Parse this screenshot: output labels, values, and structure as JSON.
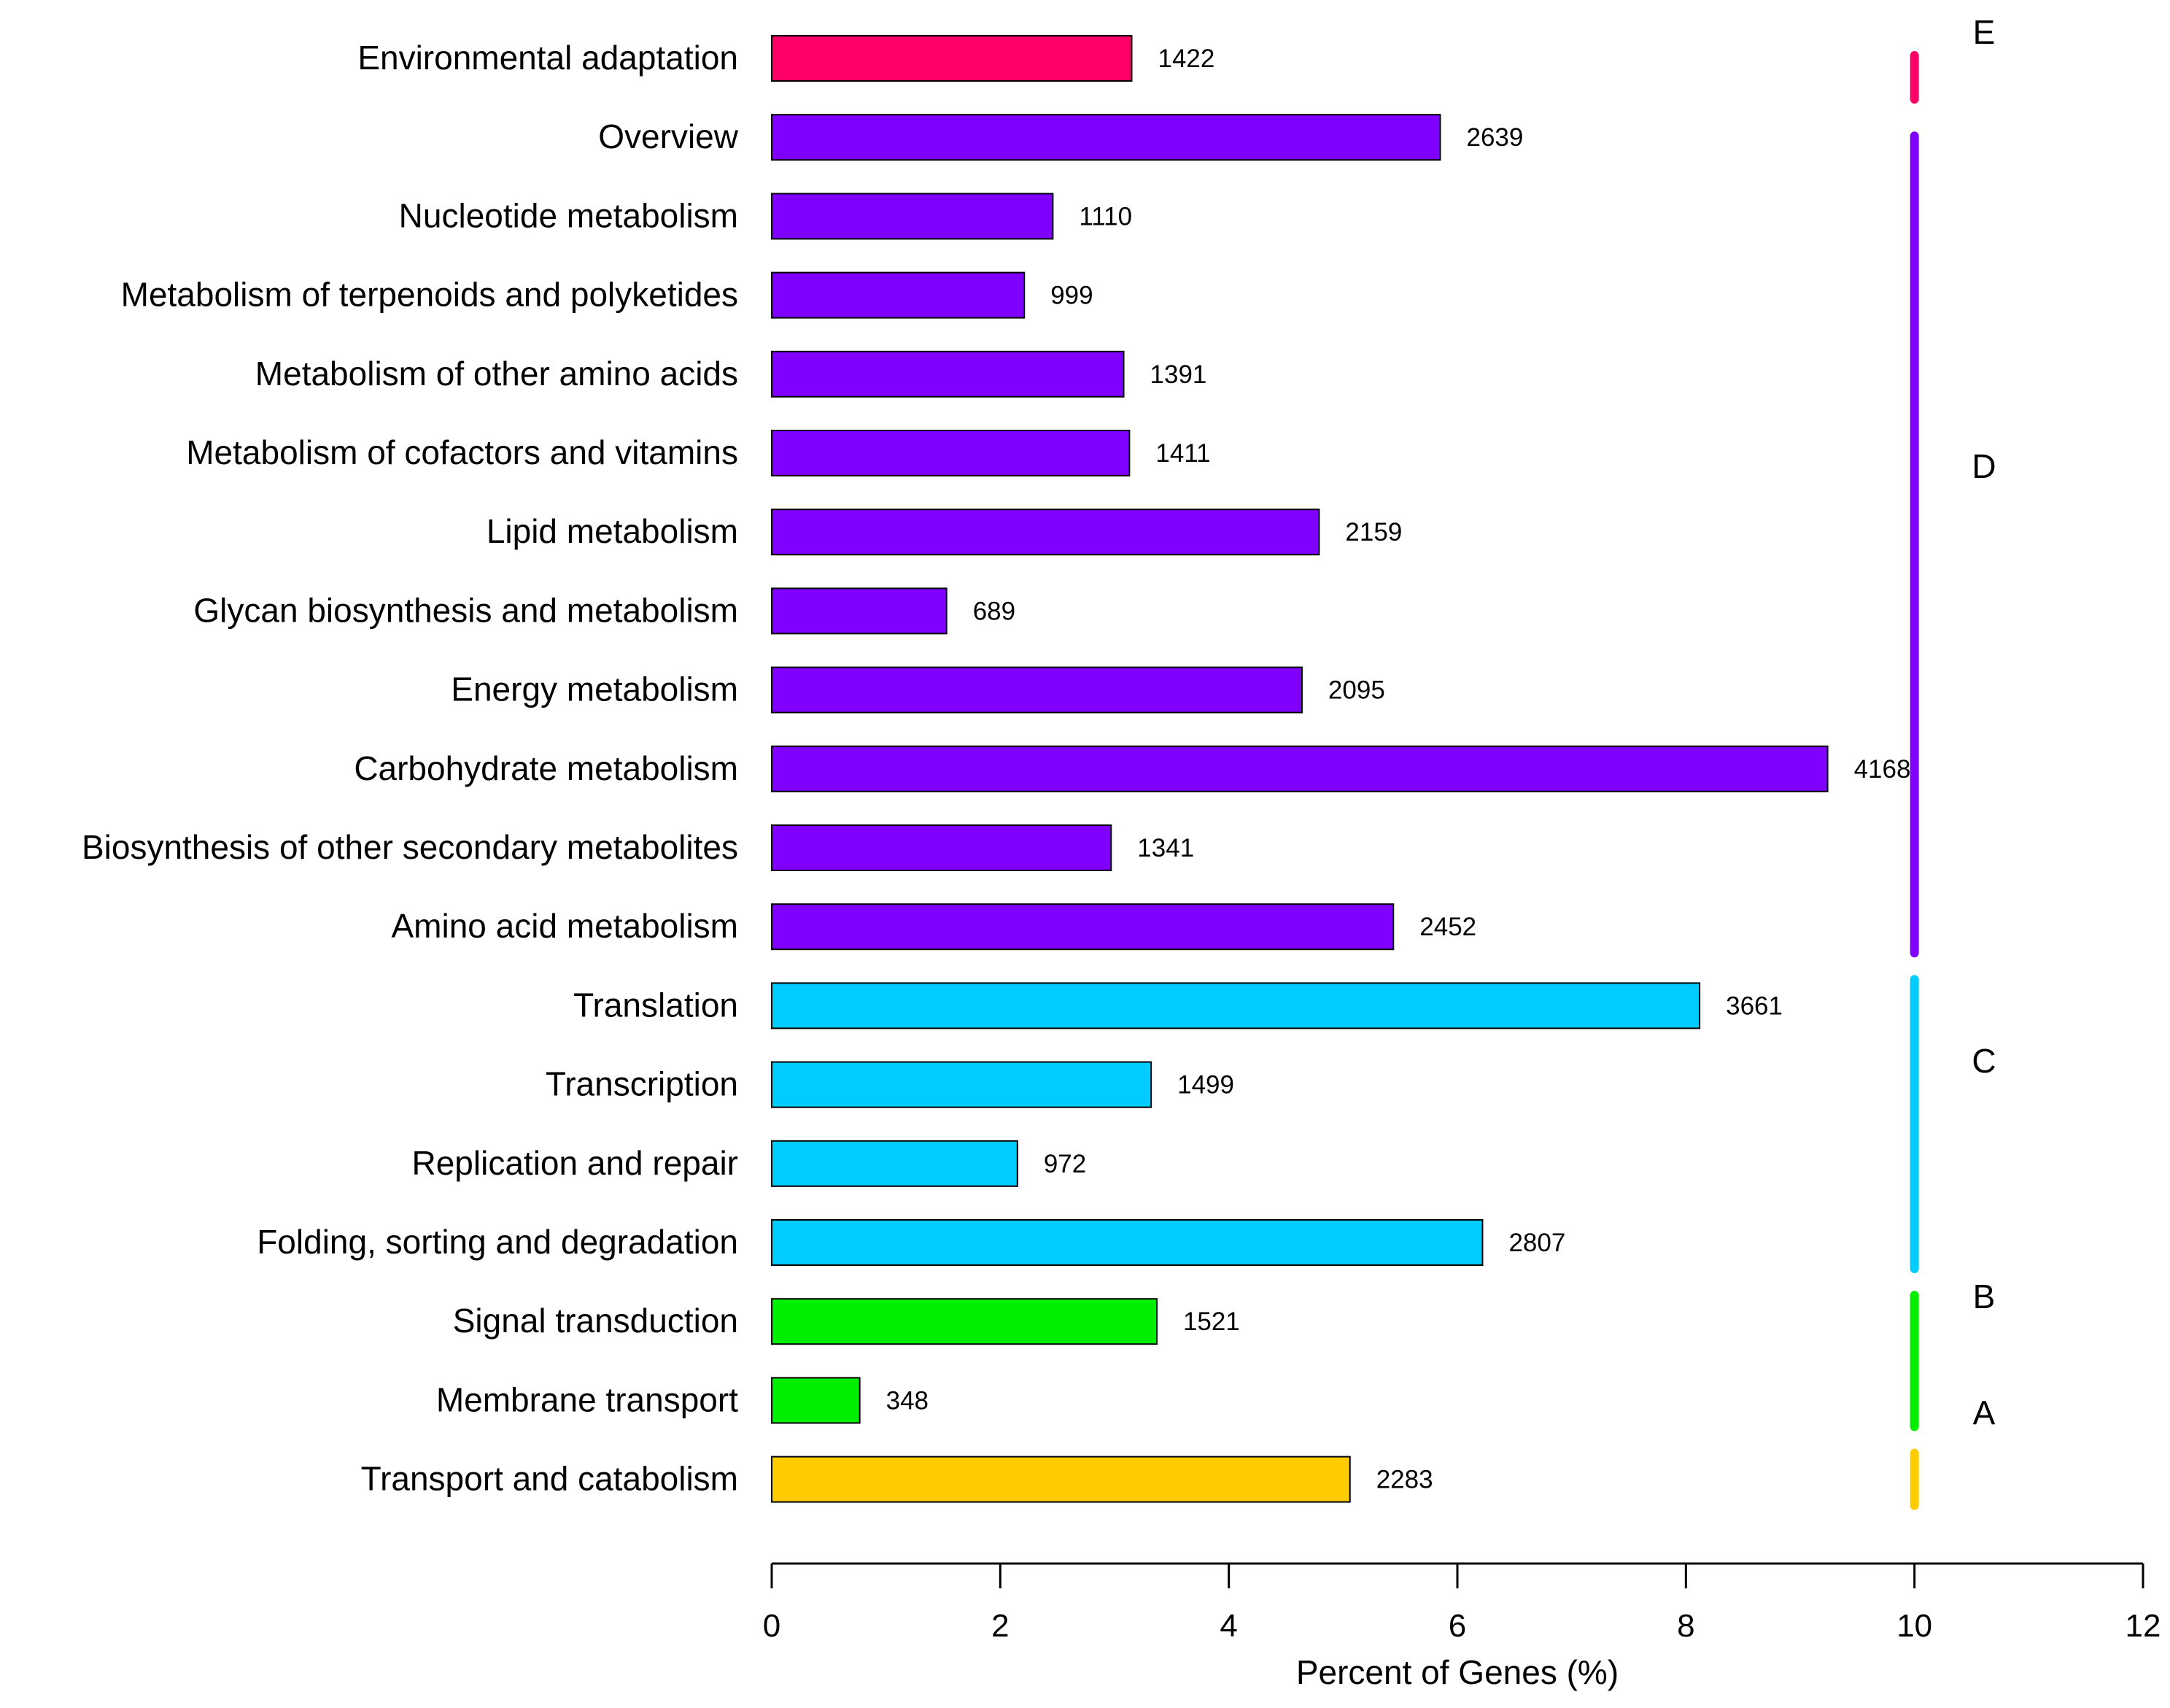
{
  "chart_data": {
    "type": "bar",
    "orientation": "horizontal",
    "title": "",
    "xlabel": "Percent of Genes (%)",
    "ylabel": "",
    "xlim": [
      0,
      12
    ],
    "xticks": [
      "0",
      "2",
      "4",
      "6",
      "8",
      "10",
      "12"
    ],
    "grid": false,
    "bars": [
      {
        "label": "Environmental adaptation",
        "value": 3.15,
        "count": "1422",
        "group": "E"
      },
      {
        "label": "Overview",
        "value": 5.85,
        "count": "2639",
        "group": "D"
      },
      {
        "label": "Nucleotide metabolism",
        "value": 2.46,
        "count": "1110",
        "group": "D"
      },
      {
        "label": "Metabolism of terpenoids and polyketides",
        "value": 2.21,
        "count": "999",
        "group": "D"
      },
      {
        "label": "Metabolism of other amino acids",
        "value": 3.08,
        "count": "1391",
        "group": "D"
      },
      {
        "label": "Metabolism of cofactors and vitamins",
        "value": 3.13,
        "count": "1411",
        "group": "D"
      },
      {
        "label": "Lipid metabolism",
        "value": 4.79,
        "count": "2159",
        "group": "D"
      },
      {
        "label": "Glycan biosynthesis and metabolism",
        "value": 1.53,
        "count": "689",
        "group": "D"
      },
      {
        "label": "Energy metabolism",
        "value": 4.64,
        "count": "2095",
        "group": "D"
      },
      {
        "label": "Carbohydrate metabolism",
        "value": 9.24,
        "count": "4168",
        "group": "D"
      },
      {
        "label": "Biosynthesis of other secondary metabolites",
        "value": 2.97,
        "count": "1341",
        "group": "D"
      },
      {
        "label": "Amino acid metabolism",
        "value": 5.44,
        "count": "2452",
        "group": "D"
      },
      {
        "label": "Translation",
        "value": 8.12,
        "count": "3661",
        "group": "C"
      },
      {
        "label": "Transcription",
        "value": 3.32,
        "count": "1499",
        "group": "C"
      },
      {
        "label": "Replication and repair",
        "value": 2.15,
        "count": "972",
        "group": "C"
      },
      {
        "label": "Folding, sorting and degradation",
        "value": 6.22,
        "count": "2807",
        "group": "C"
      },
      {
        "label": "Signal transduction",
        "value": 3.37,
        "count": "1521",
        "group": "B"
      },
      {
        "label": "Membrane transport",
        "value": 0.77,
        "count": "348",
        "group": "B"
      },
      {
        "label": "Transport and catabolism",
        "value": 5.06,
        "count": "2283",
        "group": "A"
      }
    ],
    "groups": [
      {
        "name": "E",
        "color": "#ff0066"
      },
      {
        "name": "D",
        "color": "#7f00ff"
      },
      {
        "name": "C",
        "color": "#00ccff"
      },
      {
        "name": "B",
        "color": "#00ee00"
      },
      {
        "name": "A",
        "color": "#ffcc00"
      }
    ]
  }
}
